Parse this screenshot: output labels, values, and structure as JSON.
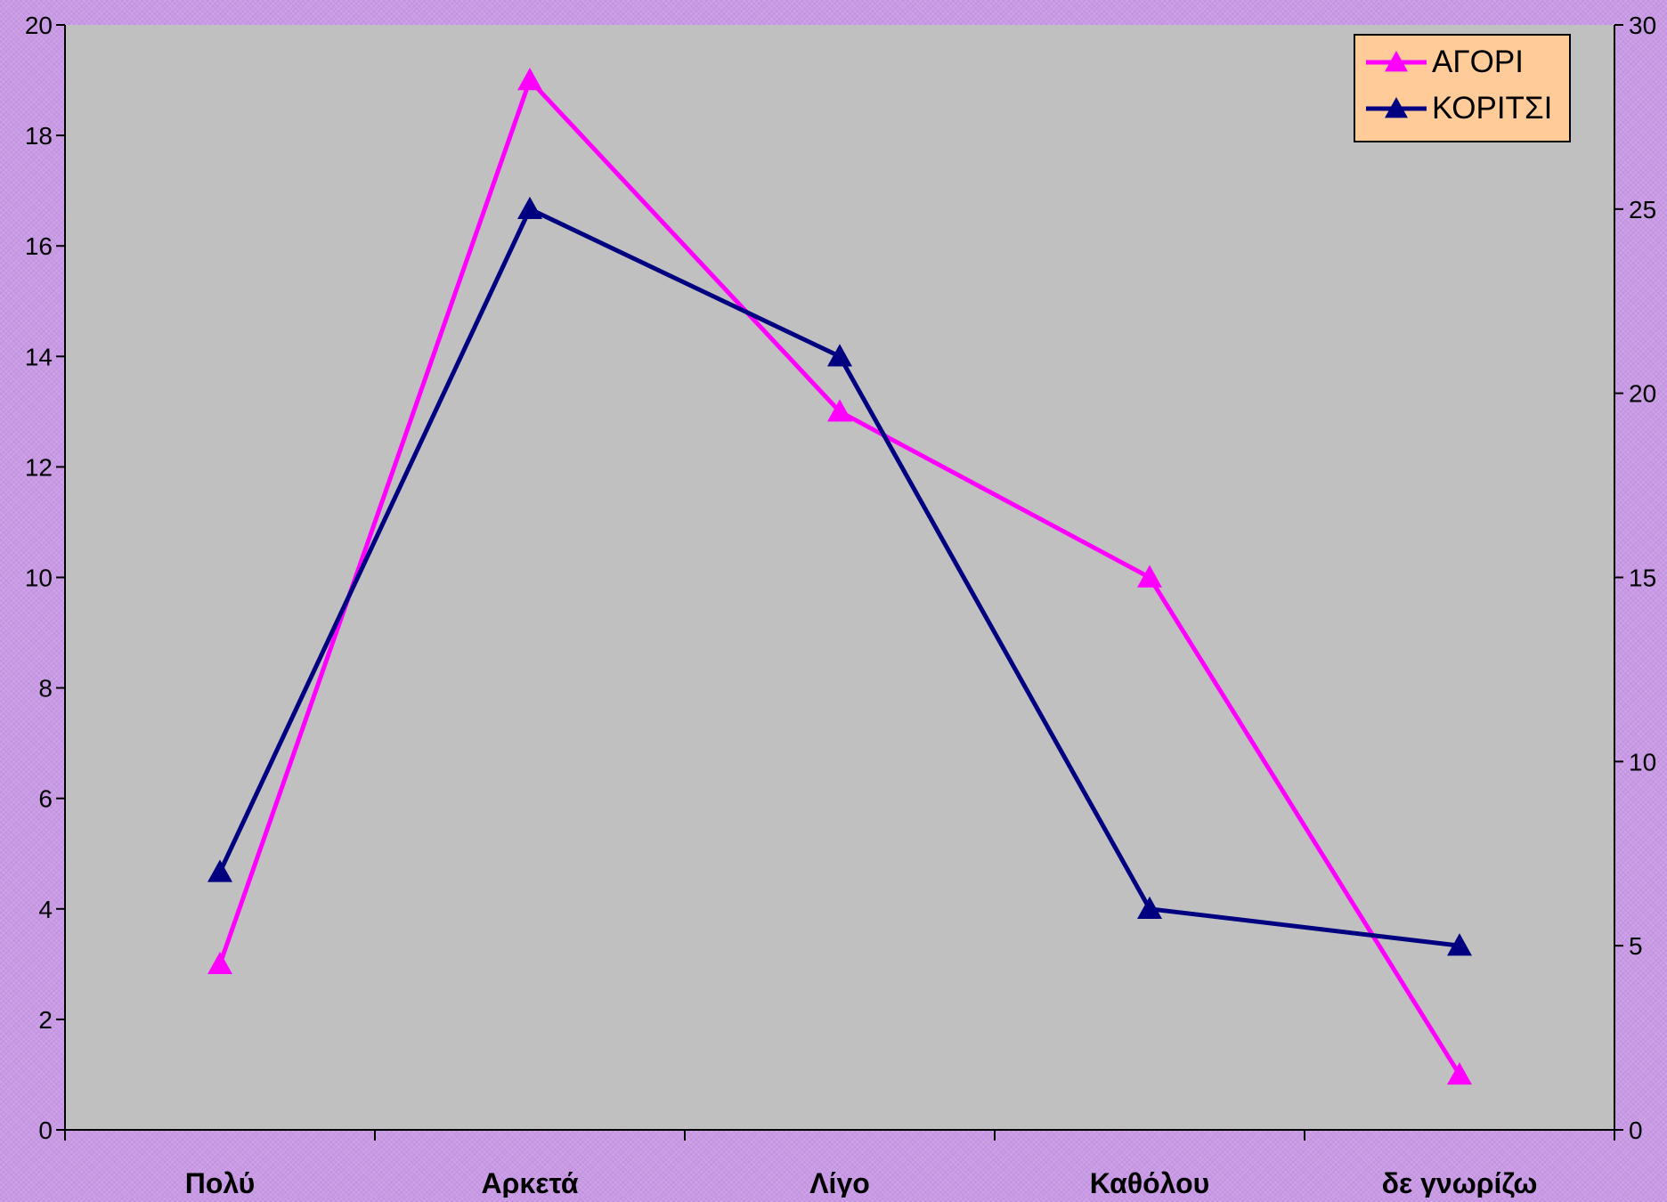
{
  "chart_data": {
    "type": "line",
    "categories": [
      "Πολύ",
      "Αρκετά",
      "Λίγο",
      "Καθόλου",
      "δε γνωρίζω"
    ],
    "series": [
      {
        "name": "ΑΓΟΡΙ",
        "axis": "left",
        "color": "#ff00ff",
        "marker": "triangle",
        "values": [
          3,
          19,
          13,
          10,
          1
        ]
      },
      {
        "name": "ΚΟΡΙΤΣΙ",
        "axis": "right",
        "color": "#000080",
        "marker": "triangle",
        "values": [
          7,
          25,
          21,
          6,
          5
        ]
      }
    ],
    "y_left": {
      "min": 0,
      "max": 20,
      "step": 2,
      "ticks": [
        "0",
        "2",
        "4",
        "6",
        "8",
        "10",
        "12",
        "14",
        "16",
        "18",
        "20"
      ]
    },
    "y_right": {
      "min": 0,
      "max": 30,
      "step": 5,
      "ticks": [
        "0",
        "5",
        "10",
        "15",
        "20",
        "25",
        "30"
      ]
    },
    "title": "",
    "xlabel": "",
    "ylabel": "",
    "grid": false,
    "legend": {
      "position": "top-right",
      "background": "#ffcc99"
    },
    "plot_background": "#c0c0c0",
    "page_background": "#c99ae6"
  }
}
